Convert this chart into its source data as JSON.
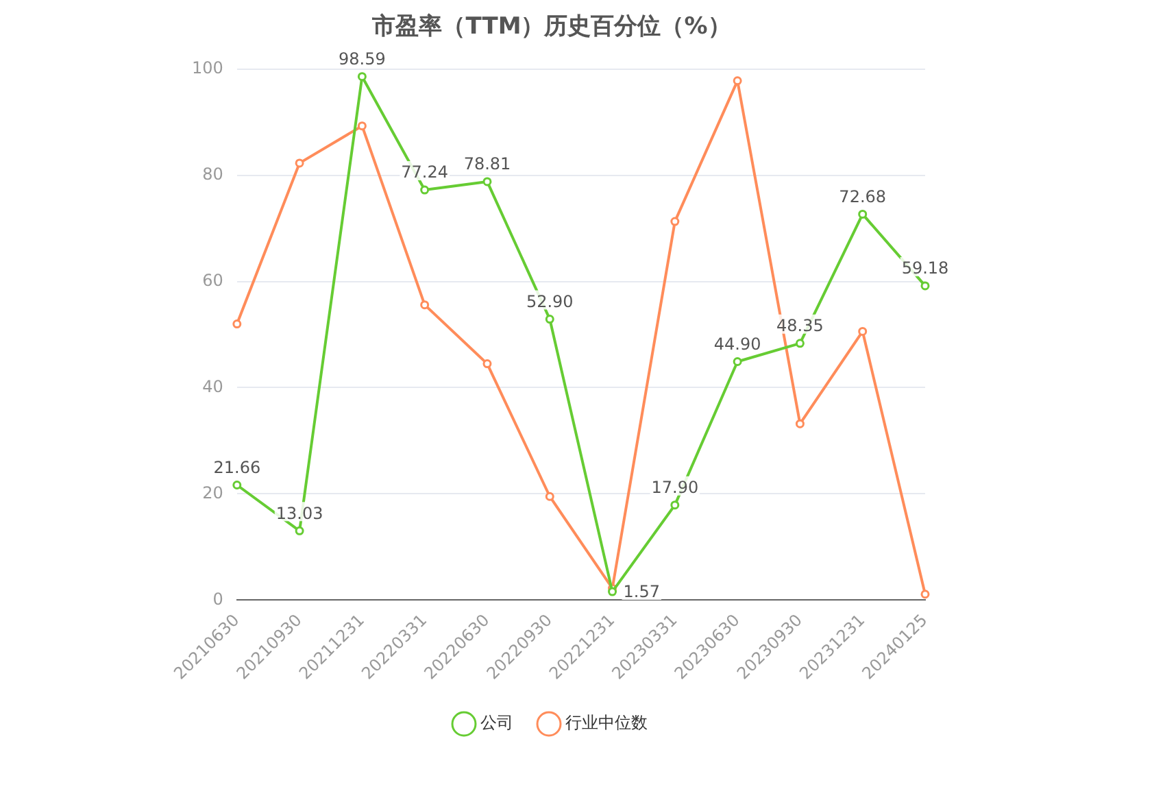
{
  "chart_data": {
    "type": "line",
    "title": "市盈率（TTM）历史百分位（%）",
    "categories": [
      "20210630",
      "20210930",
      "20211231",
      "20220331",
      "20220630",
      "20220930",
      "20221231",
      "20230331",
      "20230630",
      "20230930",
      "20231231",
      "20240125"
    ],
    "series": [
      {
        "name": "公司",
        "color": "#66cc33",
        "values": [
          21.66,
          13.03,
          98.59,
          77.24,
          78.81,
          52.9,
          1.57,
          17.9,
          44.9,
          48.35,
          72.68,
          59.18
        ],
        "value_labels": [
          "21.66",
          "13.03",
          "98.59",
          "77.24",
          "78.81",
          "52.90",
          "1.57",
          "17.90",
          "44.90",
          "48.35",
          "72.68",
          "59.18"
        ]
      },
      {
        "name": "行业中位数",
        "color": "#ff8c5a",
        "values": [
          52.0,
          82.3,
          89.3,
          55.6,
          44.5,
          19.5,
          2.2,
          71.3,
          97.8,
          33.2,
          50.6,
          1.1
        ]
      }
    ],
    "ylim": [
      0,
      100
    ],
    "yticks": [
      0,
      20,
      40,
      60,
      80,
      100
    ],
    "grid": "y",
    "legend": "bottom",
    "marker": "circle",
    "line_style": "solid"
  }
}
